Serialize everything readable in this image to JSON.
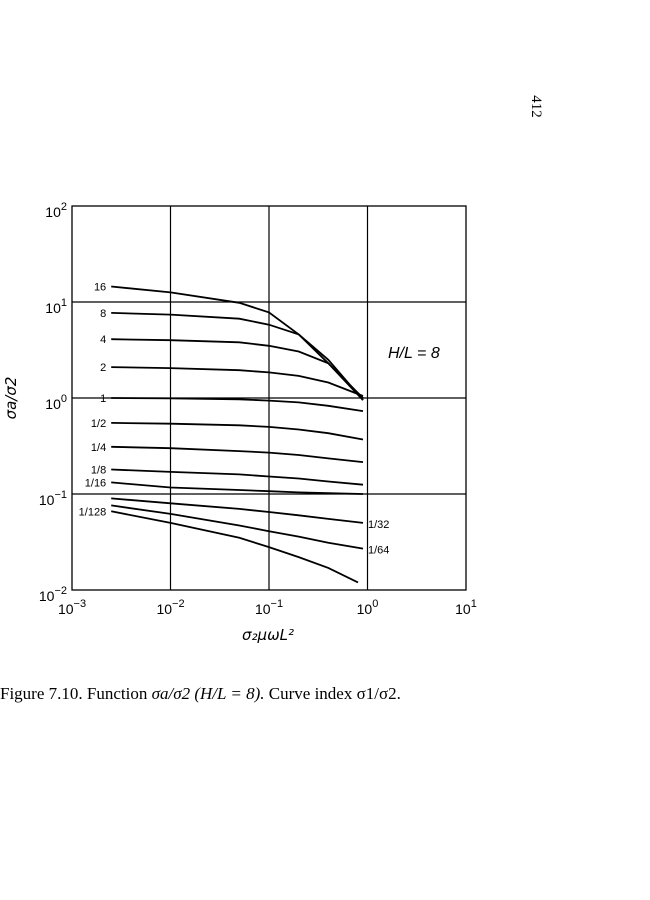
{
  "page_number": "412",
  "caption": {
    "prefix": "Figure 7.10. Function",
    "formula": "σa/σ2 (H/L = 8).",
    "suffix": "Curve index σ1/σ2."
  },
  "chart_data": {
    "type": "line",
    "title": "",
    "annotation": "H/L = 8",
    "xlabel": "σ₂μωL²",
    "ylabel": "σa/σ2",
    "x_scale": "log",
    "y_scale": "log",
    "xlim": [
      0.001,
      10
    ],
    "ylim": [
      0.01,
      100
    ],
    "grid": true,
    "x_ticks": [
      {
        "base": "10",
        "exp": "−3"
      },
      {
        "base": "10",
        "exp": "−2"
      },
      {
        "base": "10",
        "exp": "−1"
      },
      {
        "base": "10",
        "exp": "0"
      },
      {
        "base": "10",
        "exp": "1"
      }
    ],
    "y_ticks": [
      {
        "base": "10",
        "exp": "−2"
      },
      {
        "base": "10",
        "exp": "−1"
      },
      {
        "base": "10",
        "exp": "0"
      },
      {
        "base": "10",
        "exp": "1"
      },
      {
        "base": "10",
        "exp": "2"
      }
    ],
    "series": [
      {
        "name": "16",
        "label_side": "left",
        "x": [
          0.0025,
          0.01,
          0.05,
          0.1,
          0.2,
          0.4,
          0.9
        ],
        "y": [
          14.5,
          12.6,
          9.8,
          7.8,
          4.6,
          2.3,
          0.95
        ]
      },
      {
        "name": "8",
        "label_side": "left",
        "x": [
          0.0025,
          0.01,
          0.05,
          0.1,
          0.2,
          0.4,
          0.9
        ],
        "y": [
          7.7,
          7.4,
          6.7,
          5.8,
          4.6,
          2.5,
          0.95
        ]
      },
      {
        "name": "4",
        "label_side": "left",
        "x": [
          0.0025,
          0.01,
          0.05,
          0.1,
          0.2,
          0.4,
          0.9
        ],
        "y": [
          4.1,
          4.0,
          3.8,
          3.5,
          3.05,
          2.3,
          1.0
        ]
      },
      {
        "name": "2",
        "label_side": "left",
        "x": [
          0.0025,
          0.01,
          0.05,
          0.1,
          0.2,
          0.4,
          0.9
        ],
        "y": [
          2.1,
          2.05,
          1.95,
          1.85,
          1.7,
          1.45,
          1.05
        ]
      },
      {
        "name": "1",
        "label_side": "left",
        "x": [
          0.0025,
          0.01,
          0.05,
          0.1,
          0.2,
          0.4,
          0.9
        ],
        "y": [
          1.0,
          0.99,
          0.97,
          0.94,
          0.9,
          0.83,
          0.73
        ]
      },
      {
        "name": "1/2",
        "label_side": "left",
        "x": [
          0.0025,
          0.01,
          0.05,
          0.1,
          0.2,
          0.4,
          0.9
        ],
        "y": [
          0.55,
          0.54,
          0.52,
          0.5,
          0.47,
          0.43,
          0.37
        ]
      },
      {
        "name": "1/4",
        "label_side": "left",
        "x": [
          0.0025,
          0.01,
          0.05,
          0.1,
          0.2,
          0.4,
          0.9
        ],
        "y": [
          0.31,
          0.3,
          0.28,
          0.27,
          0.255,
          0.235,
          0.215
        ]
      },
      {
        "name": "1/8",
        "label_side": "left",
        "x": [
          0.0025,
          0.01,
          0.05,
          0.1,
          0.2,
          0.4,
          0.9
        ],
        "y": [
          0.18,
          0.17,
          0.16,
          0.152,
          0.145,
          0.135,
          0.125
        ]
      },
      {
        "name": "1/16",
        "label_side": "left",
        "x": [
          0.0025,
          0.01,
          0.05,
          0.1,
          0.2,
          0.4,
          0.9
        ],
        "y": [
          0.132,
          0.117,
          0.11,
          0.107,
          0.104,
          0.102,
          0.1
        ]
      },
      {
        "name": "1/32",
        "label_side": "right",
        "x": [
          0.0025,
          0.01,
          0.05,
          0.1,
          0.2,
          0.4,
          0.9
        ],
        "y": [
          0.09,
          0.08,
          0.07,
          0.065,
          0.06,
          0.055,
          0.05
        ]
      },
      {
        "name": "1/64",
        "label_side": "right",
        "x": [
          0.0025,
          0.01,
          0.05,
          0.1,
          0.2,
          0.4,
          0.9
        ],
        "y": [
          0.076,
          0.062,
          0.047,
          0.041,
          0.036,
          0.031,
          0.027
        ]
      },
      {
        "name": "1/128",
        "label_side": "left",
        "x": [
          0.0025,
          0.01,
          0.05,
          0.1,
          0.2,
          0.4,
          0.8
        ],
        "y": [
          0.066,
          0.05,
          0.035,
          0.028,
          0.022,
          0.017,
          0.012
        ]
      }
    ]
  }
}
